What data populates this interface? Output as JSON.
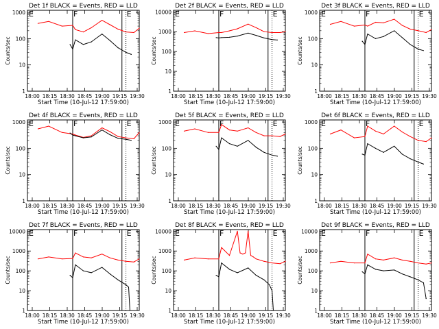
{
  "chart_data": [
    {
      "type": "line",
      "title": "Det 1f BLACK = Events, RED = LLD",
      "xlabel": "Start Time (10-Jul-12 17:59:00)",
      "ylabel": "Counts/sec",
      "xticks": [
        "18:00",
        "18:15",
        "18:30",
        "18:45",
        "19:00",
        "19:15",
        "19:30"
      ],
      "yticks": [
        "1",
        "10",
        "100",
        "1000"
      ],
      "x_range_min": [
        -4,
        38
      ],
      "ylim": [
        1,
        1200
      ],
      "yscale": "log",
      "markers": {
        "solid_min": [
          13,
          31.5
        ],
        "dotted_min": [
          33,
          38
        ],
        "letters": [
          "E",
          "F",
          "E"
        ]
      },
      "series": [
        {
          "name": "LLD",
          "color": "#ff0000",
          "x": [
            0,
            4,
            9,
            13,
            14,
            17,
            20,
            24,
            27,
            30,
            33,
            36,
            38
          ],
          "y": [
            380,
            450,
            300,
            320,
            220,
            180,
            260,
            500,
            340,
            230,
            180,
            170,
            250
          ]
        },
        {
          "name": "Events",
          "color": "#000000",
          "x": [
            12,
            13,
            14,
            17,
            20,
            24,
            27,
            30,
            33,
            35
          ],
          "y": [
            60,
            40,
            90,
            60,
            75,
            150,
            85,
            45,
            30,
            25
          ]
        }
      ]
    },
    {
      "type": "line",
      "title": "Det 2f BLACK = Events, RED = LLD",
      "xlabel": "Start Time (10-Jul-12 17:59:00)",
      "ylabel": "Counts/sec",
      "xticks": [
        "18:00",
        "18:15",
        "18:30",
        "18:45",
        "19:00",
        "19:15",
        "19:30"
      ],
      "yticks": [
        "1",
        "10",
        "100",
        "1000",
        "10000"
      ],
      "x_range_min": [
        -4,
        38
      ],
      "ylim": [
        1,
        12000
      ],
      "yscale": "log",
      "markers": {
        "solid_min": [
          13,
          31.5
        ],
        "dotted_min": [
          33,
          38
        ],
        "letters": [
          "E",
          "F",
          "E"
        ]
      },
      "series": [
        {
          "name": "LLD",
          "color": "#ff0000",
          "x": [
            0,
            4,
            9,
            13,
            14,
            17,
            20,
            24,
            27,
            30,
            33,
            36,
            38
          ],
          "y": [
            900,
            1100,
            800,
            900,
            900,
            1100,
            1400,
            2400,
            1600,
            1000,
            900,
            900,
            1000
          ]
        },
        {
          "name": "Events",
          "color": "#000000",
          "x": [
            12,
            13,
            14,
            17,
            20,
            24,
            27,
            30,
            33,
            35
          ],
          "y": [
            500,
            480,
            500,
            520,
            600,
            850,
            650,
            480,
            400,
            380
          ]
        }
      ]
    },
    {
      "type": "line",
      "title": "Det 3f BLACK = Events, RED = LLD",
      "xlabel": "Start Time (10-Jul-12 17:59:00)",
      "ylabel": "Counts/sec",
      "xticks": [
        "18:00",
        "18:15",
        "18:30",
        "18:45",
        "19:00",
        "19:15",
        "19:30"
      ],
      "yticks": [
        "1",
        "10",
        "100",
        "1000"
      ],
      "x_range_min": [
        -4,
        38
      ],
      "ylim": [
        1,
        1200
      ],
      "yscale": "log",
      "markers": {
        "solid_min": [
          13,
          31.5
        ],
        "dotted_min": [
          33,
          38
        ],
        "letters": [
          "E",
          "F",
          "E"
        ]
      },
      "series": [
        {
          "name": "LLD",
          "color": "#ff0000",
          "x": [
            0,
            4,
            9,
            13,
            14,
            17,
            20,
            24,
            27,
            30,
            33,
            36,
            38
          ],
          "y": [
            350,
            450,
            300,
            330,
            300,
            420,
            400,
            550,
            320,
            230,
            200,
            170,
            220
          ]
        },
        {
          "name": "Events",
          "color": "#000000",
          "x": [
            12,
            13,
            14,
            17,
            20,
            24,
            27,
            30,
            33,
            35
          ],
          "y": [
            80,
            60,
            150,
            100,
            120,
            200,
            110,
            60,
            40,
            35
          ]
        }
      ]
    },
    {
      "type": "line",
      "title": "Det 4f BLACK = Events, RED = LLD",
      "xlabel": "Start Time (10-Jul-12 17:59:00)",
      "ylabel": "Counts/sec",
      "xticks": [
        "18:00",
        "18:15",
        "18:30",
        "18:45",
        "19:00",
        "19:15",
        "19:30"
      ],
      "yticks": [
        "1",
        "10",
        "100",
        "1000"
      ],
      "x_range_min": [
        -4,
        38
      ],
      "ylim": [
        1,
        1200
      ],
      "yscale": "log",
      "markers": {
        "solid_min": [
          13,
          31.5
        ],
        "dotted_min": [
          33,
          38
        ],
        "letters": [
          "E",
          "F",
          "E"
        ]
      },
      "series": [
        {
          "name": "LLD",
          "color": "#ff0000",
          "x": [
            0,
            4,
            9,
            13,
            14,
            17,
            20,
            24,
            27,
            30,
            33,
            36,
            38
          ],
          "y": [
            550,
            700,
            400,
            350,
            320,
            260,
            300,
            600,
            430,
            280,
            250,
            230,
            400
          ]
        },
        {
          "name": "Events",
          "color": "#000000",
          "x": [
            12,
            13,
            14,
            17,
            20,
            24,
            27,
            30,
            33,
            35
          ],
          "y": [
            380,
            320,
            300,
            250,
            270,
            500,
            330,
            240,
            220,
            200
          ]
        }
      ]
    },
    {
      "type": "line",
      "title": "Det 5f BLACK = Events, RED = LLD",
      "xlabel": "Start Time (10-Jul-12 17:59:00)",
      "ylabel": "Counts/sec",
      "xticks": [
        "18:00",
        "18:15",
        "18:30",
        "18:45",
        "19:00",
        "19:15",
        "19:30"
      ],
      "yticks": [
        "1",
        "10",
        "100",
        "1000"
      ],
      "x_range_min": [
        -4,
        38
      ],
      "ylim": [
        1,
        1200
      ],
      "yscale": "log",
      "markers": {
        "solid_min": [
          13,
          31.5
        ],
        "dotted_min": [
          33,
          38
        ],
        "letters": [
          "E",
          "F",
          "E"
        ]
      },
      "series": [
        {
          "name": "LLD",
          "color": "#ff0000",
          "x": [
            0,
            4,
            9,
            13,
            14,
            17,
            20,
            24,
            27,
            30,
            33,
            36,
            38
          ],
          "y": [
            450,
            550,
            400,
            400,
            800,
            500,
            450,
            600,
            400,
            300,
            300,
            280,
            350
          ]
        },
        {
          "name": "Events",
          "color": "#000000",
          "x": [
            12,
            13,
            14,
            17,
            20,
            24,
            27,
            30,
            33,
            35
          ],
          "y": [
            120,
            90,
            250,
            150,
            120,
            200,
            110,
            70,
            55,
            50
          ]
        }
      ]
    },
    {
      "type": "line",
      "title": "Det 6f BLACK = Events, RED = LLD",
      "xlabel": "Start Time (10-Jul-12 17:59:00)",
      "ylabel": "Counts/sec",
      "xticks": [
        "18:00",
        "18:15",
        "18:30",
        "18:45",
        "19:00",
        "19:15",
        "19:30"
      ],
      "yticks": [
        "1",
        "10",
        "100",
        "1000"
      ],
      "x_range_min": [
        -4,
        38
      ],
      "ylim": [
        1,
        1200
      ],
      "yscale": "log",
      "markers": {
        "solid_min": [
          13,
          31.5
        ],
        "dotted_min": [
          33,
          38
        ],
        "letters": [
          "E",
          "F",
          "E"
        ]
      },
      "series": [
        {
          "name": "LLD",
          "color": "#ff0000",
          "x": [
            0,
            4,
            9,
            13,
            14,
            17,
            20,
            24,
            27,
            30,
            33,
            36,
            38
          ],
          "y": [
            350,
            500,
            250,
            280,
            700,
            450,
            350,
            700,
            420,
            280,
            200,
            180,
            250
          ]
        },
        {
          "name": "Events",
          "color": "#000000",
          "x": [
            12,
            13,
            14,
            17,
            20,
            24,
            27,
            30,
            33,
            35
          ],
          "y": [
            60,
            55,
            150,
            100,
            70,
            120,
            60,
            40,
            30,
            25
          ]
        }
      ]
    },
    {
      "type": "line",
      "title": "Det 7f BLACK = Events, RED = LLD",
      "xlabel": "Start Time (10-Jul-12 17:59:00)",
      "ylabel": "Counts/sec",
      "xticks": [
        "18:00",
        "18:15",
        "18:30",
        "18:45",
        "19:00",
        "19:15",
        "19:30"
      ],
      "yticks": [
        "1",
        "10",
        "100",
        "1000",
        "10000"
      ],
      "x_range_min": [
        -4,
        38
      ],
      "ylim": [
        1,
        12000
      ],
      "yscale": "log",
      "markers": {
        "solid_min": [
          13,
          31.5
        ],
        "dotted_min": [
          33,
          38
        ],
        "letters": [
          "E",
          "F",
          "E"
        ]
      },
      "series": [
        {
          "name": "LLD",
          "color": "#ff0000",
          "x": [
            0,
            4,
            9,
            13,
            14,
            17,
            20,
            24,
            27,
            30,
            33,
            36,
            38
          ],
          "y": [
            400,
            500,
            400,
            420,
            800,
            500,
            450,
            700,
            450,
            350,
            300,
            280,
            400
          ]
        },
        {
          "name": "Events",
          "color": "#000000",
          "x": [
            12,
            13,
            14,
            17,
            20,
            24,
            27,
            30,
            33,
            34,
            34.5
          ],
          "y": [
            60,
            45,
            200,
            100,
            80,
            150,
            70,
            35,
            20,
            15,
            1
          ]
        }
      ]
    },
    {
      "type": "line",
      "title": "Det 8f BLACK = Events, RED = LLD",
      "xlabel": "Start Time (10-Jul-12 17:59:00)",
      "ylabel": "Counts/sec",
      "xticks": [
        "18:00",
        "18:15",
        "18:30",
        "18:45",
        "19:00",
        "19:15",
        "19:30"
      ],
      "yticks": [
        "1",
        "10",
        "100",
        "1000",
        "10000"
      ],
      "x_range_min": [
        -4,
        38
      ],
      "ylim": [
        1,
        12000
      ],
      "yscale": "log",
      "markers": {
        "solid_min": [
          13,
          31.5
        ],
        "dotted_min": [
          33,
          38
        ],
        "letters": [
          "E",
          "F",
          "E"
        ]
      },
      "series": [
        {
          "name": "LLD",
          "color": "#ff0000",
          "x": [
            0,
            4,
            9,
            13,
            14,
            17,
            20,
            21,
            22,
            23,
            24,
            25,
            26,
            27,
            30,
            33,
            36,
            38
          ],
          "y": [
            350,
            450,
            400,
            400,
            1500,
            600,
            10000,
            800,
            700,
            800,
            10000,
            600,
            500,
            400,
            300,
            250,
            230,
            300
          ]
        },
        {
          "name": "Events",
          "color": "#000000",
          "x": [
            12,
            13,
            14,
            17,
            20,
            24,
            27,
            30,
            32,
            33,
            33.5
          ],
          "y": [
            60,
            50,
            250,
            120,
            80,
            140,
            60,
            35,
            20,
            10,
            1
          ]
        }
      ]
    },
    {
      "type": "line",
      "title": "Det 9f BLACK = Events, RED = LLD",
      "xlabel": "Start Time (10-Jul-12 17:59:00)",
      "ylabel": "Counts/sec",
      "xticks": [
        "18:00",
        "18:15",
        "18:30",
        "18:45",
        "19:00",
        "19:15",
        "19:30"
      ],
      "yticks": [
        "1",
        "10",
        "100",
        "1000",
        "10000"
      ],
      "x_range_min": [
        -4,
        38
      ],
      "ylim": [
        1,
        12000
      ],
      "yscale": "log",
      "markers": {
        "solid_min": [
          13,
          31.5
        ],
        "dotted_min": [
          33,
          38
        ],
        "letters": [
          "E",
          "F",
          "E"
        ]
      },
      "series": [
        {
          "name": "LLD",
          "color": "#ff0000",
          "x": [
            0,
            4,
            9,
            13,
            14,
            17,
            20,
            24,
            27,
            30,
            33,
            36,
            38
          ],
          "y": [
            250,
            300,
            250,
            250,
            700,
            400,
            350,
            450,
            350,
            300,
            250,
            220,
            250
          ]
        },
        {
          "name": "Events",
          "color": "#000000",
          "x": [
            12,
            13,
            14,
            17,
            20,
            24,
            27,
            30,
            33,
            35,
            36
          ],
          "y": [
            90,
            70,
            200,
            120,
            100,
            110,
            70,
            50,
            35,
            25,
            4
          ]
        }
      ]
    }
  ]
}
